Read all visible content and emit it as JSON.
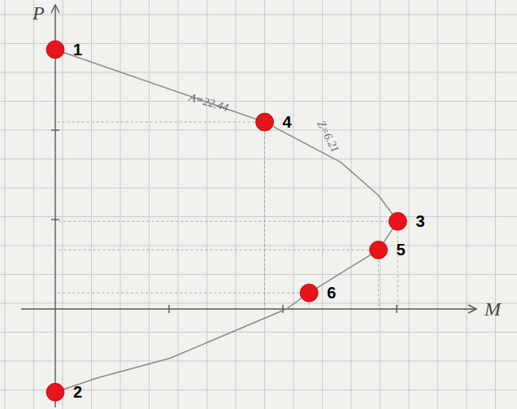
{
  "chart_data": {
    "type": "line",
    "x_label": "M",
    "y_label": "P",
    "xlim": [
      -0.3,
      3.7
    ],
    "ylim": [
      -1.1,
      3.4
    ],
    "xticks": [
      1,
      2,
      3
    ],
    "yticks": [
      1,
      2
    ],
    "grid": true,
    "tick_labels": false,
    "series": [
      {
        "type": "line",
        "color": "#8a8a8a",
        "line_style": "solid",
        "x": [
          0,
          1.84,
          2.51,
          2.84,
          3.01,
          2.84,
          2.23,
          2.03,
          1.01,
          0.37,
          0
        ],
        "values": [
          2.9,
          2.09,
          1.64,
          1.27,
          0.98,
          0.66,
          0.18,
          0,
          -0.55,
          -0.77,
          -0.93
        ]
      },
      {
        "type": "scatter",
        "color": "#e8141b",
        "marker": "circle",
        "x": [
          0,
          0,
          3.01,
          1.84,
          2.84,
          2.23
        ],
        "values": [
          2.9,
          -0.93,
          0.98,
          2.09,
          0.66,
          0.18
        ],
        "labels": [
          "1",
          "2",
          "3",
          "4",
          "5",
          "6"
        ]
      }
    ],
    "annotations": [
      {
        "text": "A=22.44",
        "x": 1.34,
        "y": 2.27
      },
      {
        "text": "Z=6.21",
        "x": 2.37,
        "y": 1.91
      }
    ]
  }
}
